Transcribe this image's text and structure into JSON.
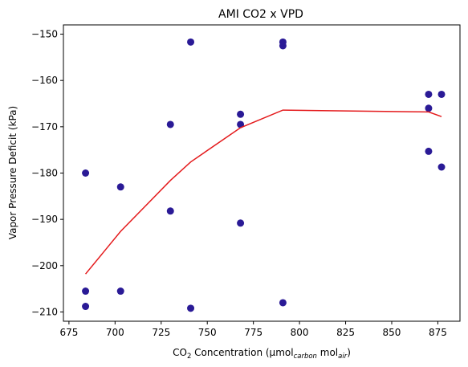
{
  "chart_data": {
    "type": "scatter",
    "title": "AMI CO2 x VPD",
    "xlabel": {
      "main": "CO",
      "main_sub": "2",
      "text": " Concentration (μmol",
      "sub1": "carbon",
      "mid": " mol",
      "sub2": "air",
      "end": ")"
    },
    "ylabel": "Vapor Pressure Deficit (kPa)",
    "xlim": [
      672,
      887
    ],
    "ylim": [
      -212,
      -148
    ],
    "xticks": [
      675,
      700,
      725,
      750,
      775,
      800,
      825,
      850,
      875
    ],
    "yticks": [
      -150,
      -160,
      -170,
      -180,
      -190,
      -200,
      -210
    ],
    "grid": false,
    "points_color": "#2a1a96",
    "line_color": "#e41a1c",
    "points": [
      {
        "x": 684,
        "y": -180.0
      },
      {
        "x": 684,
        "y": -205.5
      },
      {
        "x": 684,
        "y": -208.8
      },
      {
        "x": 703,
        "y": -183.0
      },
      {
        "x": 703,
        "y": -205.5
      },
      {
        "x": 730,
        "y": -169.5
      },
      {
        "x": 730,
        "y": -188.2
      },
      {
        "x": 741,
        "y": -151.7
      },
      {
        "x": 741,
        "y": -209.2
      },
      {
        "x": 768,
        "y": -167.3
      },
      {
        "x": 768,
        "y": -169.5
      },
      {
        "x": 768,
        "y": -190.8
      },
      {
        "x": 791,
        "y": -151.7
      },
      {
        "x": 791,
        "y": -152.5
      },
      {
        "x": 791,
        "y": -208.0
      },
      {
        "x": 870,
        "y": -163.0
      },
      {
        "x": 870,
        "y": -166.0
      },
      {
        "x": 870,
        "y": -175.3
      },
      {
        "x": 877,
        "y": -163.0
      },
      {
        "x": 877,
        "y": -178.7
      }
    ],
    "line": {
      "x": [
        684,
        703,
        730,
        741,
        768,
        791,
        870,
        877
      ],
      "y": [
        -201.8,
        -192.6,
        -181.6,
        -177.6,
        -170.2,
        -166.4,
        -166.8,
        -167.8
      ]
    }
  }
}
